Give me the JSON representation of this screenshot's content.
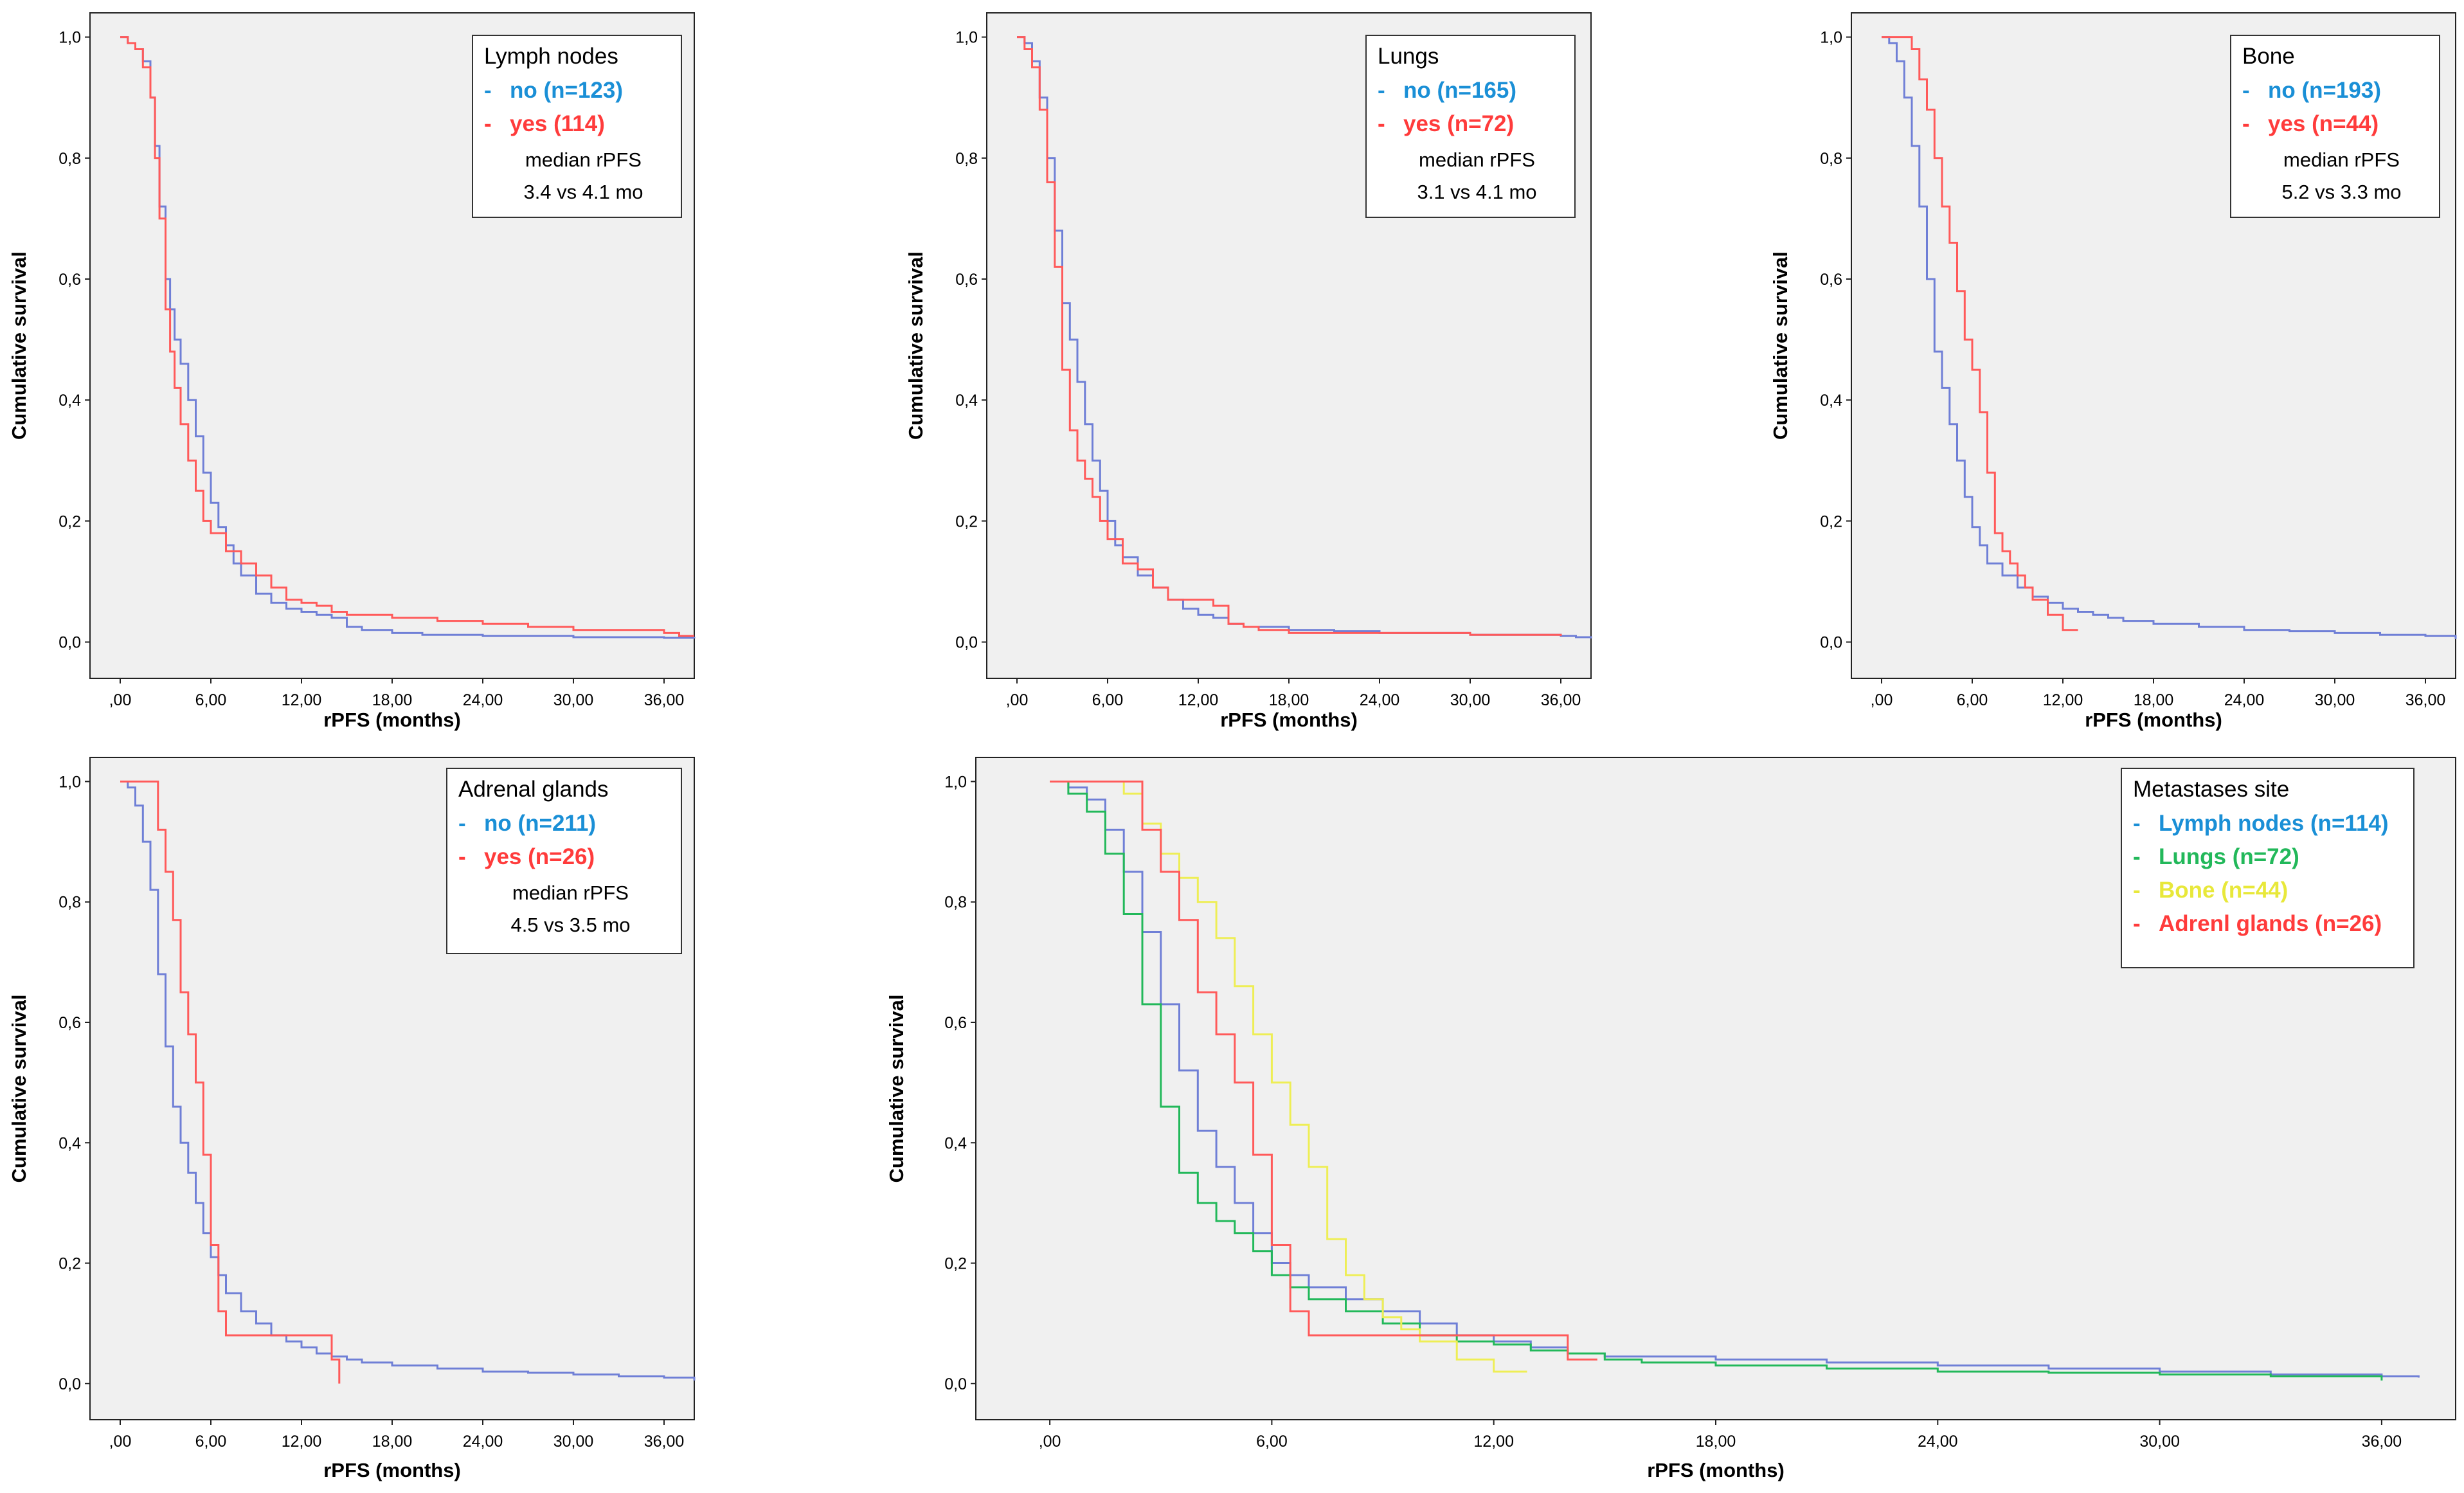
{
  "chart_data": [
    {
      "type": "line",
      "title": "Lymph nodes",
      "xlabel": "rPFS (months)",
      "ylabel": "Cumulative survival",
      "xlim": [
        -2,
        38
      ],
      "ylim": [
        -0.06,
        1.04
      ],
      "xticks": [
        0,
        6,
        12,
        18,
        24,
        30,
        36
      ],
      "xtick_labels": [
        ",00",
        "6,00",
        "12,00",
        "18,00",
        "24,00",
        "30,00",
        "36,00"
      ],
      "yticks": [
        0,
        0.2,
        0.4,
        0.6,
        0.8,
        1.0
      ],
      "ytick_labels": [
        "0,0",
        "0,2",
        "0,4",
        "0,6",
        "0,8",
        "1,0"
      ],
      "legend": {
        "title": "Lymph nodes",
        "entries": [
          {
            "marker": "-",
            "label": "no (n=123)",
            "color": "#1a8fd6"
          },
          {
            "marker": "-",
            "label": "yes (114)",
            "color": "#ff3b3b"
          }
        ],
        "notes": [
          "median rPFS",
          "3.4 vs 4.1 mo"
        ]
      },
      "series": [
        {
          "name": "no",
          "color": "#6f7fd6",
          "x": [
            0,
            0.5,
            1,
            1.5,
            2,
            2.3,
            2.6,
            3,
            3.3,
            3.6,
            4,
            4.5,
            5,
            5.5,
            6,
            6.5,
            7,
            7.5,
            8,
            9,
            10,
            11,
            12,
            13,
            14,
            15,
            16,
            18,
            20,
            24,
            30,
            36,
            38
          ],
          "y": [
            1,
            0.99,
            0.98,
            0.96,
            0.9,
            0.82,
            0.72,
            0.6,
            0.55,
            0.5,
            0.46,
            0.4,
            0.34,
            0.28,
            0.23,
            0.19,
            0.16,
            0.13,
            0.11,
            0.08,
            0.065,
            0.055,
            0.05,
            0.045,
            0.04,
            0.025,
            0.02,
            0.015,
            0.012,
            0.01,
            0.008,
            0.007,
            0.006
          ]
        },
        {
          "name": "yes",
          "color": "#ff5a5a",
          "x": [
            0,
            0.5,
            1,
            1.5,
            2,
            2.3,
            2.6,
            3,
            3.3,
            3.6,
            4,
            4.5,
            5,
            5.5,
            6,
            7,
            8,
            9,
            10,
            11,
            12,
            13,
            14,
            15,
            18,
            21,
            24,
            27,
            30,
            33,
            36,
            37,
            38
          ],
          "y": [
            1,
            0.99,
            0.98,
            0.95,
            0.9,
            0.8,
            0.7,
            0.55,
            0.48,
            0.42,
            0.36,
            0.3,
            0.25,
            0.2,
            0.18,
            0.15,
            0.13,
            0.11,
            0.09,
            0.07,
            0.065,
            0.06,
            0.05,
            0.045,
            0.04,
            0.035,
            0.03,
            0.025,
            0.02,
            0.02,
            0.015,
            0.01,
            0.01
          ]
        }
      ]
    },
    {
      "type": "line",
      "title": "Lungs",
      "xlabel": "rPFS (months)",
      "ylabel": "Cumulative survival",
      "xlim": [
        -2,
        38
      ],
      "ylim": [
        -0.06,
        1.04
      ],
      "xticks": [
        0,
        6,
        12,
        18,
        24,
        30,
        36
      ],
      "xtick_labels": [
        ",00",
        "6,00",
        "12,00",
        "18,00",
        "24,00",
        "30,00",
        "36,00"
      ],
      "yticks": [
        0,
        0.2,
        0.4,
        0.6,
        0.8,
        1.0
      ],
      "ytick_labels": [
        "0,0",
        "0,2",
        "0,4",
        "0,6",
        "0,8",
        "1,0"
      ],
      "legend": {
        "title": "Lungs",
        "entries": [
          {
            "marker": "-",
            "label": "no (n=165)",
            "color": "#1a8fd6"
          },
          {
            "marker": "-",
            "label": "yes (n=72)",
            "color": "#ff3b3b"
          }
        ],
        "notes": [
          "median rPFS",
          "3.1 vs 4.1 mo"
        ]
      },
      "series": [
        {
          "name": "no",
          "color": "#6f7fd6",
          "x": [
            0,
            0.5,
            1,
            1.5,
            2,
            2.5,
            3,
            3.5,
            4,
            4.5,
            5,
            5.5,
            6,
            6.5,
            7,
            8,
            9,
            10,
            11,
            12,
            13,
            14,
            15,
            18,
            21,
            24,
            30,
            36,
            37,
            38
          ],
          "y": [
            1,
            0.99,
            0.96,
            0.9,
            0.8,
            0.68,
            0.56,
            0.5,
            0.43,
            0.36,
            0.3,
            0.25,
            0.2,
            0.16,
            0.14,
            0.11,
            0.09,
            0.07,
            0.055,
            0.045,
            0.04,
            0.03,
            0.025,
            0.02,
            0.018,
            0.015,
            0.012,
            0.01,
            0.008,
            0.006
          ]
        },
        {
          "name": "yes",
          "color": "#ff5a5a",
          "x": [
            0,
            0.5,
            1,
            1.5,
            2,
            2.5,
            3,
            3.5,
            4,
            4.5,
            5,
            5.5,
            6,
            7,
            8,
            9,
            10,
            11,
            12,
            13,
            14,
            15,
            16,
            18,
            24,
            30,
            36
          ],
          "y": [
            1,
            0.98,
            0.95,
            0.88,
            0.76,
            0.62,
            0.45,
            0.35,
            0.3,
            0.27,
            0.24,
            0.2,
            0.17,
            0.13,
            0.12,
            0.09,
            0.07,
            0.07,
            0.07,
            0.06,
            0.03,
            0.025,
            0.02,
            0.015,
            0.015,
            0.012,
            0.01
          ]
        }
      ]
    },
    {
      "type": "line",
      "title": "Bone",
      "xlabel": "rPFS (months)",
      "ylabel": "Cumulative survival",
      "xlim": [
        -2,
        38
      ],
      "ylim": [
        -0.06,
        1.04
      ],
      "xticks": [
        0,
        6,
        12,
        18,
        24,
        30,
        36
      ],
      "xtick_labels": [
        ",00",
        "6,00",
        "12,00",
        "18,00",
        "24,00",
        "30,00",
        "36,00"
      ],
      "yticks": [
        0,
        0.2,
        0.4,
        0.6,
        0.8,
        1.0
      ],
      "ytick_labels": [
        "0,0",
        "0,2",
        "0,4",
        "0,6",
        "0,8",
        "1,0"
      ],
      "legend": {
        "title": "Bone",
        "entries": [
          {
            "marker": "-",
            "label": "no (n=193)",
            "color": "#1a8fd6"
          },
          {
            "marker": "-",
            "label": "yes (n=44)",
            "color": "#ff3b3b"
          }
        ],
        "notes": [
          "median rPFS",
          "5.2 vs 3.3 mo"
        ]
      },
      "series": [
        {
          "name": "no",
          "color": "#6f7fd6",
          "x": [
            0,
            0.5,
            1,
            1.5,
            2,
            2.5,
            3,
            3.5,
            4,
            4.5,
            5,
            5.5,
            6,
            6.5,
            7,
            8,
            9,
            10,
            11,
            12,
            13,
            14,
            15,
            16,
            18,
            21,
            24,
            27,
            30,
            33,
            36,
            38
          ],
          "y": [
            1,
            0.99,
            0.96,
            0.9,
            0.82,
            0.72,
            0.6,
            0.48,
            0.42,
            0.36,
            0.3,
            0.24,
            0.19,
            0.16,
            0.13,
            0.11,
            0.09,
            0.075,
            0.065,
            0.055,
            0.05,
            0.045,
            0.04,
            0.035,
            0.03,
            0.025,
            0.02,
            0.018,
            0.015,
            0.012,
            0.01,
            0.005
          ]
        },
        {
          "name": "yes",
          "color": "#ff5a5a",
          "x": [
            0,
            0.5,
            1,
            1.5,
            2,
            2.5,
            3,
            3.5,
            4,
            4.5,
            5,
            5.5,
            6,
            6.5,
            7,
            7.5,
            8,
            8.5,
            9,
            9.5,
            10,
            11,
            12,
            13
          ],
          "y": [
            1,
            1,
            1,
            1,
            0.98,
            0.93,
            0.88,
            0.8,
            0.72,
            0.66,
            0.58,
            0.5,
            0.45,
            0.38,
            0.28,
            0.18,
            0.15,
            0.13,
            0.11,
            0.09,
            0.07,
            0.045,
            0.02,
            0.02
          ]
        }
      ]
    },
    {
      "type": "line",
      "title": "Adrenal glands",
      "xlabel": "rPFS (months)",
      "ylabel": "Cumulative survival",
      "xlim": [
        -2,
        38
      ],
      "ylim": [
        -0.06,
        1.04
      ],
      "xticks": [
        0,
        6,
        12,
        18,
        24,
        30,
        36
      ],
      "xtick_labels": [
        ",00",
        "6,00",
        "12,00",
        "18,00",
        "24,00",
        "30,00",
        "36,00"
      ],
      "yticks": [
        0,
        0.2,
        0.4,
        0.6,
        0.8,
        1.0
      ],
      "ytick_labels": [
        "0,0",
        "0,2",
        "0,4",
        "0,6",
        "0,8",
        "1,0"
      ],
      "legend": {
        "title": "Adrenal glands",
        "entries": [
          {
            "marker": "-",
            "label": "no (n=211)",
            "color": "#1a8fd6"
          },
          {
            "marker": "-",
            "label": "yes (n=26)",
            "color": "#ff3b3b"
          }
        ],
        "notes": [
          "median rPFS",
          "4.5 vs 3.5 mo"
        ]
      },
      "series": [
        {
          "name": "no",
          "color": "#6f7fd6",
          "x": [
            0,
            0.5,
            1,
            1.5,
            2,
            2.5,
            3,
            3.5,
            4,
            4.5,
            5,
            5.5,
            6,
            6.5,
            7,
            8,
            9,
            10,
            11,
            12,
            13,
            14,
            15,
            16,
            18,
            21,
            24,
            27,
            30,
            33,
            36,
            38
          ],
          "y": [
            1,
            0.99,
            0.96,
            0.9,
            0.82,
            0.68,
            0.56,
            0.46,
            0.4,
            0.35,
            0.3,
            0.25,
            0.21,
            0.18,
            0.15,
            0.12,
            0.1,
            0.08,
            0.07,
            0.06,
            0.05,
            0.045,
            0.04,
            0.035,
            0.03,
            0.025,
            0.02,
            0.018,
            0.015,
            0.012,
            0.01,
            0.005
          ]
        },
        {
          "name": "yes",
          "color": "#ff5a5a",
          "x": [
            0,
            0.5,
            1,
            1.5,
            2,
            2.5,
            3,
            3.5,
            4,
            4.5,
            5,
            5.5,
            6,
            6.5,
            7,
            8,
            9,
            10,
            11,
            12,
            13,
            14,
            14.5
          ],
          "y": [
            1,
            1,
            1,
            1,
            1,
            0.92,
            0.85,
            0.77,
            0.65,
            0.58,
            0.5,
            0.38,
            0.23,
            0.12,
            0.08,
            0.08,
            0.08,
            0.08,
            0.08,
            0.08,
            0.08,
            0.04,
            0.0
          ]
        }
      ]
    },
    {
      "type": "line",
      "title": "Metastases site",
      "xlabel": "rPFS (months)",
      "ylabel": "Cumulative survival",
      "xlim": [
        -2,
        38
      ],
      "ylim": [
        -0.06,
        1.04
      ],
      "xticks": [
        0,
        6,
        12,
        18,
        24,
        30,
        36
      ],
      "xtick_labels": [
        ",00",
        "6,00",
        "12,00",
        "18,00",
        "24,00",
        "30,00",
        "36,00"
      ],
      "yticks": [
        0,
        0.2,
        0.4,
        0.6,
        0.8,
        1.0
      ],
      "ytick_labels": [
        "0,0",
        "0,2",
        "0,4",
        "0,6",
        "0,8",
        "1,0"
      ],
      "legend": {
        "title": "Metastases site",
        "entries": [
          {
            "marker": "-",
            "label": "Lymph nodes (n=114)",
            "color": "#1a8fd6"
          },
          {
            "marker": "-",
            "label": "Lungs (n=72)",
            "color": "#22b85a"
          },
          {
            "marker": "-",
            "label": "Bone (n=44)",
            "color": "#e8e83a"
          },
          {
            "marker": "-",
            "label": "Adrenl glands (n=26)",
            "color": "#ff3b3b"
          }
        ],
        "notes": []
      },
      "series": [
        {
          "name": "Lymph nodes",
          "color": "#6f7fd6",
          "x": [
            0,
            0.5,
            1,
            1.5,
            2,
            2.5,
            3,
            3.5,
            4,
            4.5,
            5,
            5.5,
            6,
            6.5,
            7,
            8,
            9,
            10,
            11,
            12,
            13,
            14,
            15,
            18,
            21,
            24,
            27,
            30,
            33,
            36,
            37
          ],
          "y": [
            1,
            0.99,
            0.97,
            0.92,
            0.85,
            0.75,
            0.63,
            0.52,
            0.42,
            0.36,
            0.3,
            0.25,
            0.2,
            0.18,
            0.16,
            0.14,
            0.12,
            0.1,
            0.08,
            0.07,
            0.06,
            0.05,
            0.045,
            0.04,
            0.035,
            0.03,
            0.025,
            0.02,
            0.015,
            0.012,
            0.01
          ]
        },
        {
          "name": "Lungs",
          "color": "#22b85a",
          "x": [
            0,
            0.5,
            1,
            1.5,
            2,
            2.5,
            3,
            3.5,
            4,
            4.5,
            5,
            5.5,
            6,
            6.5,
            7,
            8,
            9,
            10,
            11,
            12,
            13,
            14,
            15,
            16,
            18,
            21,
            24,
            27,
            30,
            33,
            36
          ],
          "y": [
            1,
            0.98,
            0.95,
            0.88,
            0.78,
            0.63,
            0.46,
            0.35,
            0.3,
            0.27,
            0.25,
            0.22,
            0.18,
            0.16,
            0.14,
            0.12,
            0.1,
            0.08,
            0.07,
            0.065,
            0.055,
            0.05,
            0.04,
            0.035,
            0.03,
            0.025,
            0.02,
            0.018,
            0.015,
            0.012,
            0.005
          ]
        },
        {
          "name": "Bone",
          "color": "#eeee55",
          "x": [
            0,
            0.5,
            1,
            1.5,
            2,
            2.5,
            3,
            3.5,
            4,
            4.5,
            5,
            5.5,
            6,
            6.5,
            7,
            7.5,
            8,
            8.5,
            9,
            9.5,
            10,
            11,
            12,
            12.9
          ],
          "y": [
            1,
            1,
            1,
            1,
            0.98,
            0.93,
            0.88,
            0.84,
            0.8,
            0.74,
            0.66,
            0.58,
            0.5,
            0.43,
            0.36,
            0.24,
            0.18,
            0.14,
            0.11,
            0.09,
            0.07,
            0.04,
            0.02,
            0.02
          ]
        },
        {
          "name": "Adrenal glands",
          "color": "#ff5a5a",
          "x": [
            0,
            0.5,
            1,
            1.5,
            2,
            2.5,
            3,
            3.5,
            4,
            4.5,
            5,
            5.5,
            6,
            6.5,
            7,
            8,
            9,
            10,
            11,
            12,
            13,
            14,
            14.8
          ],
          "y": [
            1,
            1,
            1,
            1,
            1,
            0.92,
            0.85,
            0.77,
            0.65,
            0.58,
            0.5,
            0.38,
            0.23,
            0.12,
            0.08,
            0.08,
            0.08,
            0.08,
            0.08,
            0.08,
            0.08,
            0.04,
            0.04
          ]
        }
      ]
    }
  ]
}
